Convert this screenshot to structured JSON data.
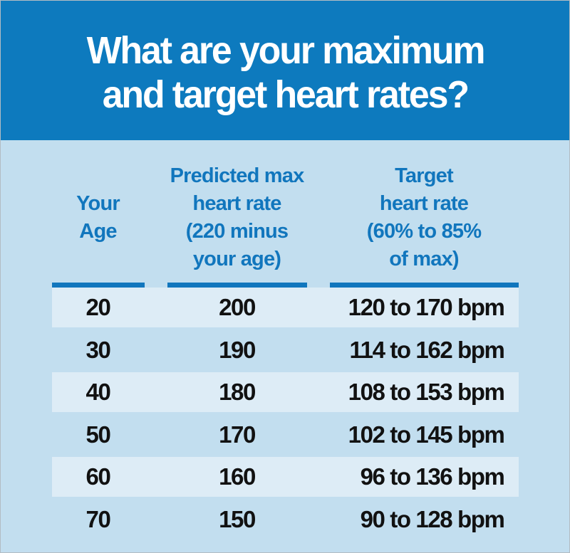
{
  "title": {
    "line1": "What are your maximum",
    "line2": "and target heart rates?"
  },
  "table": {
    "columns": [
      {
        "lines": [
          "Your",
          "Age"
        ]
      },
      {
        "lines": [
          "Predicted max",
          "heart rate",
          "(220 minus",
          "your age)"
        ]
      },
      {
        "lines": [
          "Target",
          "heart rate",
          "(60% to 85%",
          "of max)"
        ]
      }
    ],
    "rows": [
      {
        "age": "20",
        "max": "200",
        "target": "120 to 170 bpm"
      },
      {
        "age": "30",
        "max": "190",
        "target": "114 to 162 bpm"
      },
      {
        "age": "40",
        "max": "180",
        "target": "108 to 153 bpm"
      },
      {
        "age": "50",
        "max": "170",
        "target": "102 to 145 bpm"
      },
      {
        "age": "60",
        "max": "160",
        "target": "96 to 136 bpm"
      },
      {
        "age": "70",
        "max": "150",
        "target": "90 to 128 bpm"
      }
    ]
  },
  "colors": {
    "header_bg": "#0d7abe",
    "accent_blue": "#1176bd",
    "body_bg": "#c2deef",
    "stripe_bg": "#ddecf6",
    "title_text": "#ffffff",
    "row_text": "#111111"
  },
  "chart_data": {
    "type": "table",
    "title": "What are your maximum and target heart rates?",
    "columns": [
      "Your Age",
      "Predicted max heart rate (220 minus your age)",
      "Target heart rate (60% to 85% of max)"
    ],
    "rows": [
      [
        "20",
        "200",
        "120 to 170 bpm"
      ],
      [
        "30",
        "190",
        "114 to 162 bpm"
      ],
      [
        "40",
        "180",
        "108 to 153 bpm"
      ],
      [
        "50",
        "170",
        "102 to 145 bpm"
      ],
      [
        "60",
        "160",
        "96 to 136 bpm"
      ],
      [
        "70",
        "150",
        "90 to 128 bpm"
      ]
    ]
  }
}
